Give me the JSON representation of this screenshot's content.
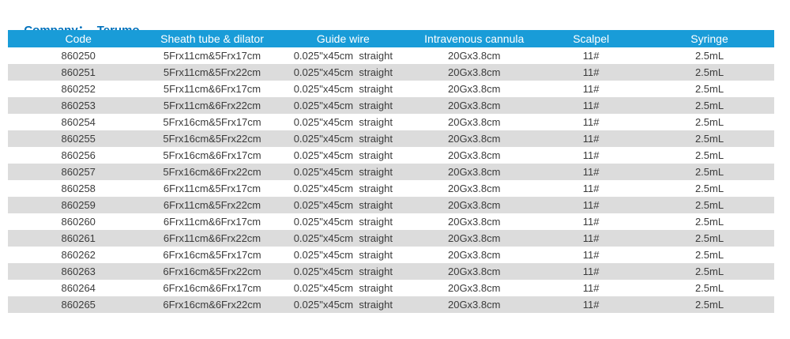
{
  "header": {
    "company_label": "Company：",
    "company_value": "Terumo"
  },
  "colors": {
    "page_bg": "#ffffff",
    "title_blue": "#0071bc",
    "header_bar_blue": "#199cd8",
    "header_text": "#ffffff",
    "row_alt_gray": "#dcdcdc",
    "body_text": "#3b3b3b"
  },
  "table": {
    "columns": [
      "Code",
      "Sheath tube & dilator",
      "Guide wire",
      "Intravenous cannula",
      "Scalpel",
      "Syringe"
    ],
    "column_widths_pct": [
      18.4,
      16.5,
      17.7,
      16.5,
      14.0,
      16.9
    ],
    "rows": [
      [
        "860250",
        "5Frx11cm&5Frx17cm",
        "0.025\"x45cm  straight",
        "20Gx3.8cm",
        "11#",
        "2.5mL"
      ],
      [
        "860251",
        "5Frx11cm&5Frx22cm",
        "0.025\"x45cm  straight",
        "20Gx3.8cm",
        "11#",
        "2.5mL"
      ],
      [
        "860252",
        "5Frx11cm&6Frx17cm",
        "0.025\"x45cm  straight",
        "20Gx3.8cm",
        "11#",
        "2.5mL"
      ],
      [
        "860253",
        "5Frx11cm&6Frx22cm",
        "0.025\"x45cm  straight",
        "20Gx3.8cm",
        "11#",
        "2.5mL"
      ],
      [
        "860254",
        "5Frx16cm&5Frx17cm",
        "0.025\"x45cm  straight",
        "20Gx3.8cm",
        "11#",
        "2.5mL"
      ],
      [
        "860255",
        "5Frx16cm&5Frx22cm",
        "0.025\"x45cm  straight",
        "20Gx3.8cm",
        "11#",
        "2.5mL"
      ],
      [
        "860256",
        "5Frx16cm&6Frx17cm",
        "0.025\"x45cm  straight",
        "20Gx3.8cm",
        "11#",
        "2.5mL"
      ],
      [
        "860257",
        "5Frx16cm&6Frx22cm",
        "0.025\"x45cm  straight",
        "20Gx3.8cm",
        "11#",
        "2.5mL"
      ],
      [
        "860258",
        "6Frx11cm&5Frx17cm",
        "0.025\"x45cm  straight",
        "20Gx3.8cm",
        "11#",
        "2.5mL"
      ],
      [
        "860259",
        "6Frx11cm&5Frx22cm",
        "0.025\"x45cm  straight",
        "20Gx3.8cm",
        "11#",
        "2.5mL"
      ],
      [
        "860260",
        "6Frx11cm&6Frx17cm",
        "0.025\"x45cm  straight",
        "20Gx3.8cm",
        "11#",
        "2.5mL"
      ],
      [
        "860261",
        "6Frx11cm&6Frx22cm",
        "0.025\"x45cm  straight",
        "20Gx3.8cm",
        "11#",
        "2.5mL"
      ],
      [
        "860262",
        "6Frx16cm&5Frx17cm",
        "0.025\"x45cm  straight",
        "20Gx3.8cm",
        "11#",
        "2.5mL"
      ],
      [
        "860263",
        "6Frx16cm&5Frx22cm",
        "0.025\"x45cm  straight",
        "20Gx3.8cm",
        "11#",
        "2.5mL"
      ],
      [
        "860264",
        "6Frx16cm&6Frx17cm",
        "0.025\"x45cm  straight",
        "20Gx3.8cm",
        "11#",
        "2.5mL"
      ],
      [
        "860265",
        "6Frx16cm&6Frx22cm",
        "0.025\"x45cm  straight",
        "20Gx3.8cm",
        "11#",
        "2.5mL"
      ]
    ]
  }
}
